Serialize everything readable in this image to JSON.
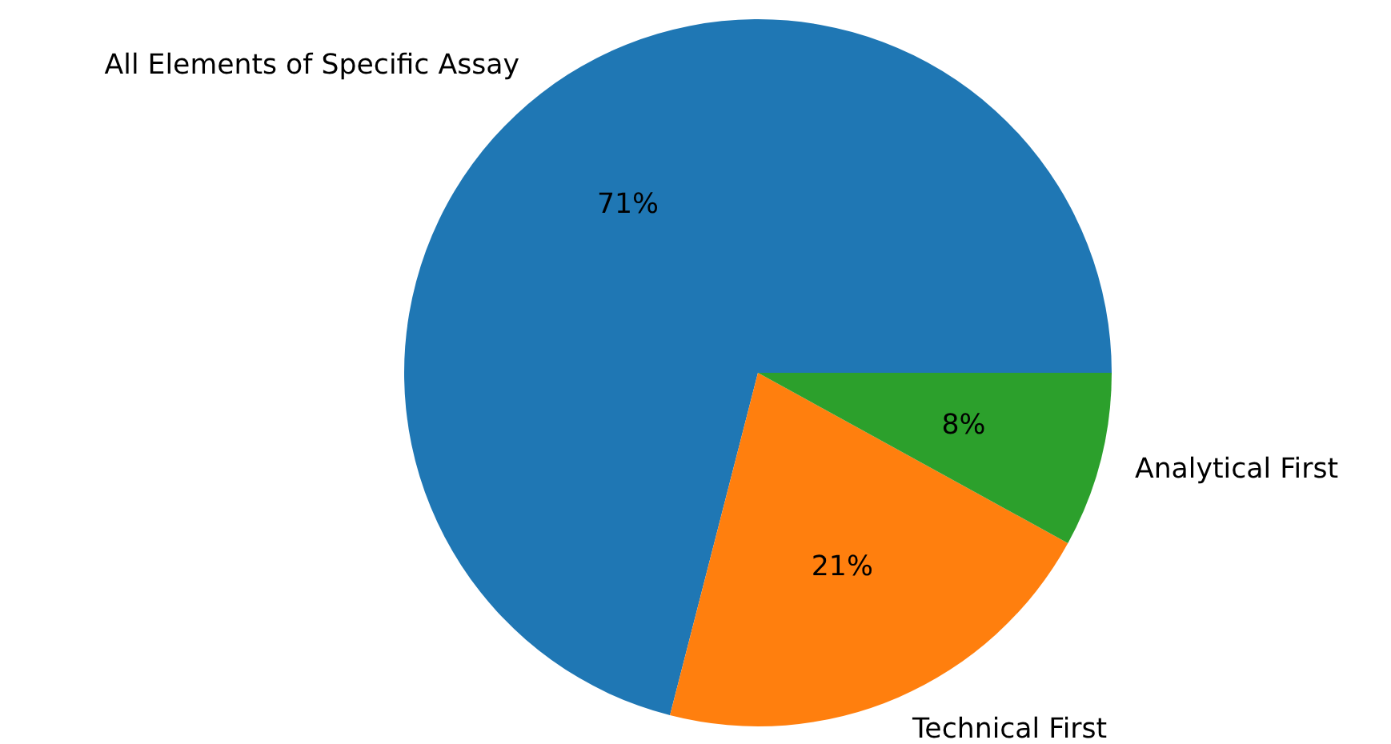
{
  "chart_data": {
    "type": "pie",
    "categories": [
      "All Elements of Specific Assay",
      "Technical First",
      "Analytical First"
    ],
    "values": [
      71,
      21,
      8
    ],
    "colors": [
      "#1f77b4",
      "#ff7f0e",
      "#2ca02c"
    ],
    "value_labels": [
      "71%",
      "21%",
      "8%"
    ]
  }
}
